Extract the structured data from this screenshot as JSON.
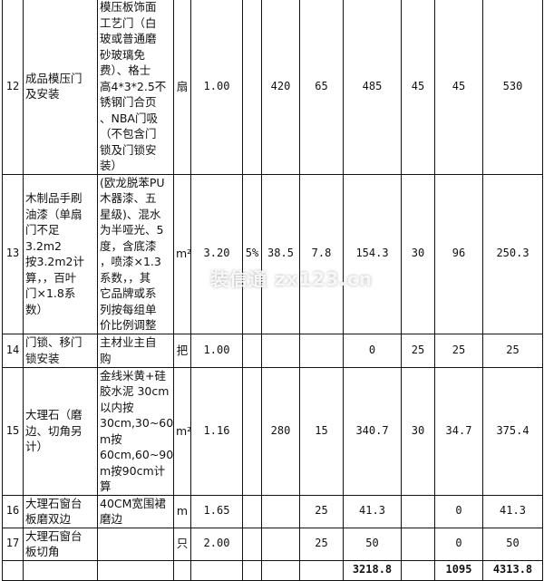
{
  "rows": [
    {
      "no": "12",
      "name": "成品模压门\n及安装",
      "desc": "模压板饰面\n工艺门（白\n玻或普通磨\n砂玻璃免\n费）、格士\n高4*3*2.5不\n锈钢门合页\n、NBA门吸\n（不包含门\n锁及门锁安\n装）",
      "unit": "扇",
      "qty": "1.00",
      "loss": "",
      "c1": "420",
      "c2": "65",
      "c3": "485",
      "c4": "45",
      "c5": "45",
      "total": "530"
    },
    {
      "no": "13",
      "name": "木制品手刷\n油漆（单扇\n门不足3.2m2\n按3.2m2计\n算，，百叶\n门×1.8系\n数）",
      "desc": "(欧龙脱苯PU\n木器漆、五\n星级)、混水\n为半哑光、5\n度，含底漆\n，喷漆×1.3\n系数，，其\n它品牌或系\n列按每组单\n价比例调整",
      "unit": "m²",
      "qty": "3.20",
      "loss": "5%",
      "c1": "38.5",
      "c2": "7.8",
      "c3": "154.3",
      "c4": "30",
      "c5": "96",
      "total": "250.3"
    },
    {
      "no": "14",
      "name": "门锁、移门\n锁安装",
      "desc": "主材业主自\n购",
      "unit": "把",
      "qty": "1.00",
      "loss": "",
      "c1": "",
      "c2": "",
      "c3": "0",
      "c4": "25",
      "c5": "25",
      "total": "25"
    },
    {
      "no": "15",
      "name": "大理石（磨\n边、切角另\n计）",
      "desc": "金线米黄+硅\n胶水泥 30cm\n以内按\n30cm,30~60c\nm按\n60cm,60~90c\nm按90cm计算",
      "unit": "m²",
      "qty": "1.16",
      "loss": "",
      "c1": "280",
      "c2": "15",
      "c3": "340.7",
      "c4": "30",
      "c5": "34.7",
      "total": "375.4"
    },
    {
      "no": "16",
      "name": "大理石窗台\n板磨双边",
      "desc": "40CM宽围裙\n磨边",
      "unit": "m",
      "qty": "1.65",
      "loss": "",
      "c1": "",
      "c2": "25",
      "c3": "41.3",
      "c4": "",
      "c5": "0",
      "total": "41.3"
    },
    {
      "no": "17",
      "name": "大理石窗台\n板切角",
      "desc": "",
      "unit": "只",
      "qty": "2.00",
      "loss": "",
      "c1": "",
      "c2": "25",
      "c3": "50",
      "c4": "",
      "c5": "0",
      "total": "50"
    }
  ],
  "totals": {
    "c3": "3218.8",
    "c5": "1095",
    "total": "4313.8"
  },
  "watermark": "装信通 zx123.cn"
}
